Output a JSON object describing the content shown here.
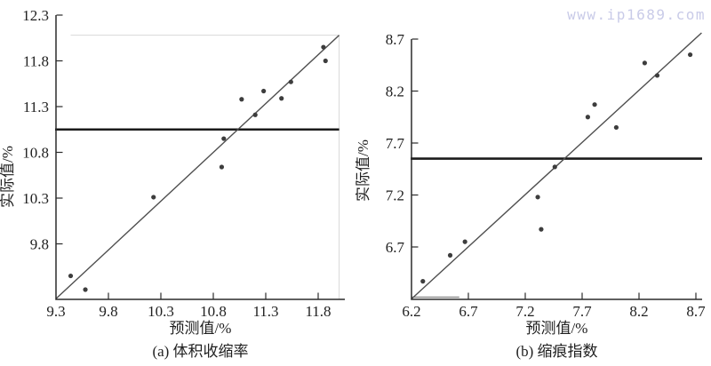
{
  "watermark": "www.ip1689.com",
  "colors": {
    "axis": "#2b2b2b",
    "tick_label": "#1f1f1f",
    "point": "#3d3d3d",
    "fit_line": "#4f4f4f",
    "ref_line": "#1b1b1b",
    "faint_border": "#d8d8d8",
    "artifact": "#8f8f8f",
    "watermark": "#c9cbe8",
    "background": "#ffffff"
  },
  "chart_data": [
    {
      "type": "scatter",
      "caption": "(a) 体积收缩率",
      "xlabel": "预测值/%",
      "ylabel": "实际值/%",
      "xlim": [
        9.3,
        12.05
      ],
      "ylim": [
        9.19,
        12.3
      ],
      "xticks": [
        9.3,
        9.8,
        10.3,
        10.8,
        11.3,
        11.8
      ],
      "yticks": [
        12.3,
        11.8,
        11.3,
        10.8,
        10.3,
        9.8
      ],
      "grid": "off",
      "points": [
        [
          11.85,
          11.95
        ],
        [
          11.87,
          11.8
        ],
        [
          11.54,
          11.57
        ],
        [
          11.28,
          11.47
        ],
        [
          11.45,
          11.39
        ],
        [
          11.07,
          11.38
        ],
        [
          11.2,
          11.21
        ],
        [
          10.9,
          10.95
        ],
        [
          10.88,
          10.64
        ],
        [
          10.23,
          10.31
        ],
        [
          9.44,
          9.45
        ],
        [
          9.58,
          9.3
        ]
      ],
      "fit_line": {
        "x1": 9.3,
        "y1": 9.2,
        "x2": 12.0,
        "y2": 12.08
      },
      "hline": 11.05,
      "frame": {
        "top_y": 12.08,
        "top_x_start": 9.44,
        "right_x": 12.0
      }
    },
    {
      "type": "scatter",
      "caption": "(b) 缩痕指数",
      "xlabel": "预测值/%",
      "ylabel": "实际值/%",
      "xlim": [
        6.2,
        8.76
      ],
      "ylim": [
        6.2,
        8.7
      ],
      "xticks": [
        6.2,
        6.7,
        7.2,
        7.7,
        8.2,
        8.7
      ],
      "yticks": [
        8.7,
        8.2,
        7.7,
        7.2,
        6.7
      ],
      "grid": "off",
      "points": [
        [
          8.65,
          8.55
        ],
        [
          8.25,
          8.47
        ],
        [
          8.36,
          8.35
        ],
        [
          7.81,
          8.07
        ],
        [
          7.75,
          7.95
        ],
        [
          8.0,
          7.85
        ],
        [
          7.46,
          7.47
        ],
        [
          7.31,
          7.18
        ],
        [
          7.34,
          6.87
        ],
        [
          6.67,
          6.75
        ],
        [
          6.54,
          6.62
        ],
        [
          6.3,
          6.37
        ]
      ],
      "fit_line": {
        "x1": 6.2,
        "y1": 6.2,
        "x2": 8.75,
        "y2": 8.76
      },
      "hline": 7.55,
      "stub_line": {
        "x1": 6.2,
        "x2": 6.62
      }
    }
  ]
}
